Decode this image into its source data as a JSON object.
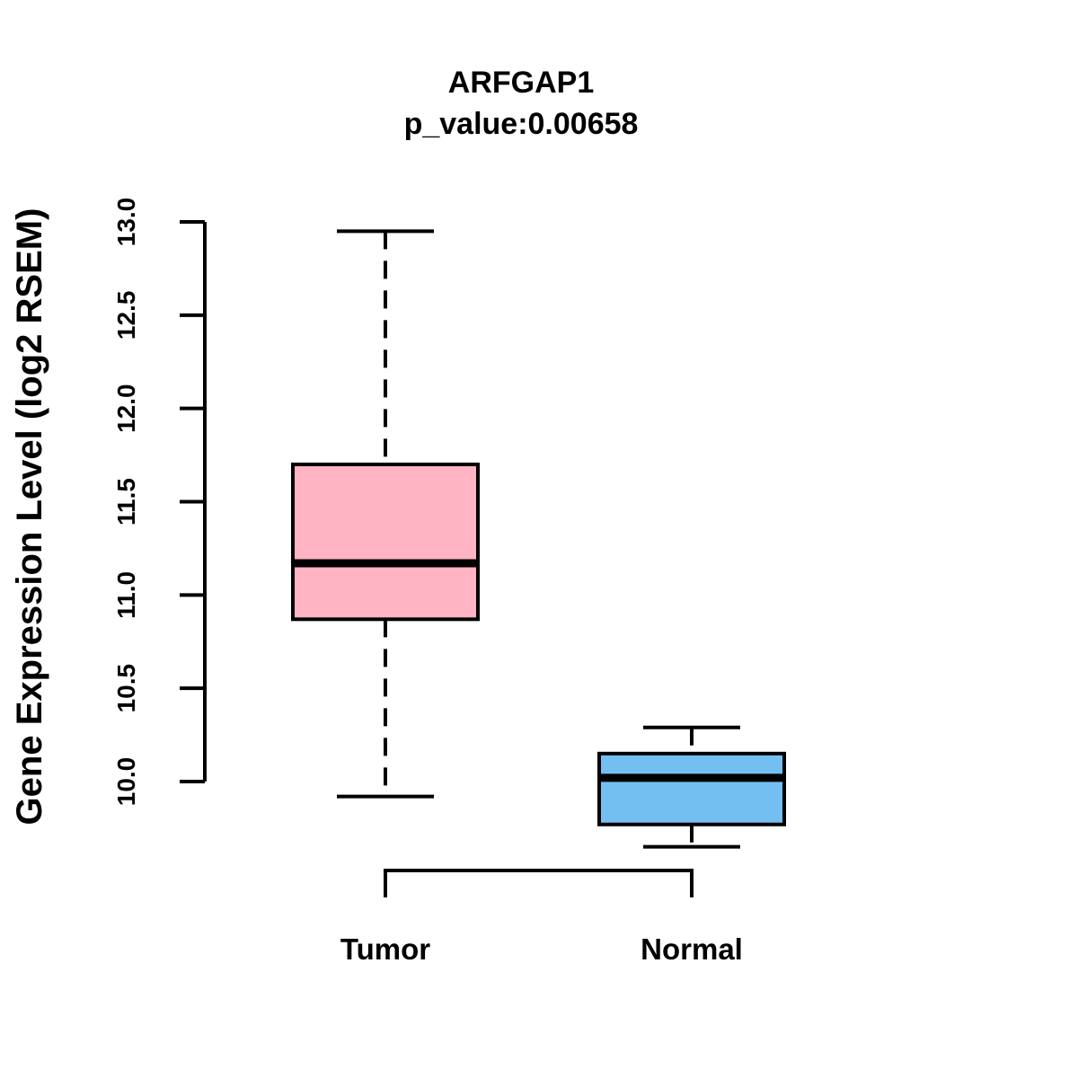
{
  "chart_data": {
    "type": "boxplot",
    "title": "ARFGAP1",
    "subtitle": "p_value:0.00658",
    "ylabel": "Gene Expression Level (log2 RSEM)",
    "ylim": [
      10.0,
      13.0
    ],
    "ytick_labels": [
      "10.0",
      "10.5",
      "11.0",
      "11.5",
      "12.0",
      "12.5",
      "13.0"
    ],
    "grid": false,
    "legend_position": "none",
    "axis_color": "#000000",
    "categories": [
      "Tumor",
      "Normal"
    ],
    "series": [
      {
        "name": "Tumor",
        "color": "#FFB3C3",
        "whisker_low": 9.92,
        "q1": 10.87,
        "median": 11.17,
        "q3": 11.7,
        "whisker_high": 12.95
      },
      {
        "name": "Normal",
        "color": "#74BFF2",
        "whisker_low": 9.65,
        "q1": 9.77,
        "median": 10.02,
        "q3": 10.15,
        "whisker_high": 10.29
      }
    ]
  }
}
